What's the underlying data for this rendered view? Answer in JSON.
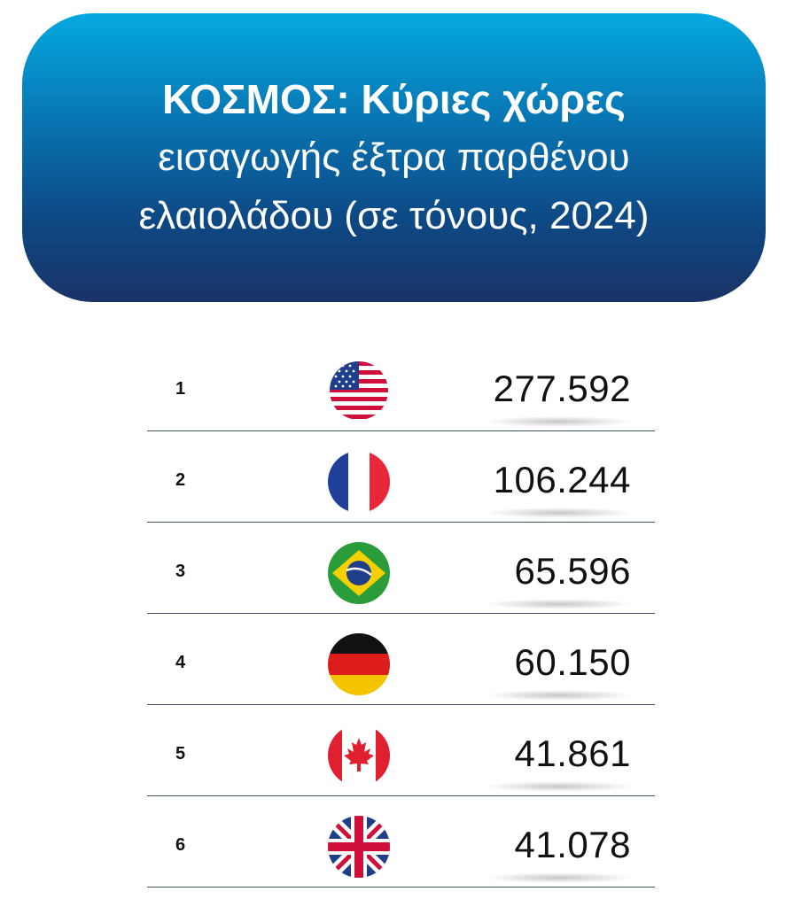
{
  "header": {
    "title_bold": "ΚΟΣΜΟΣ: Κύριες χώρες",
    "title_line2": "εισαγωγής έξτρα παρθένου",
    "title_line3": "ελαιολάδου (σε τόνους, 2024)"
  },
  "chart_data": {
    "type": "table",
    "title": "ΚΟΣΜΟΣ: Κύριες χώρες εισαγωγής έξτρα παρθένου ελαιολάδου (σε τόνους, 2024)",
    "rows": [
      {
        "rank": "1",
        "flag": "usa-flag-icon",
        "value": "277.592"
      },
      {
        "rank": "2",
        "flag": "france-flag-icon",
        "value": "106.244"
      },
      {
        "rank": "3",
        "flag": "brazil-flag-icon",
        "value": "65.596"
      },
      {
        "rank": "4",
        "flag": "germany-flag-icon",
        "value": "60.150"
      },
      {
        "rank": "5",
        "flag": "canada-flag-icon",
        "value": "41.861"
      },
      {
        "rank": "6",
        "flag": "uk-flag-icon",
        "value": "41.078"
      }
    ]
  },
  "colors": {
    "header_top": "#05a9e0",
    "header_bottom": "#1a3366",
    "divider": "#3d4f67"
  }
}
